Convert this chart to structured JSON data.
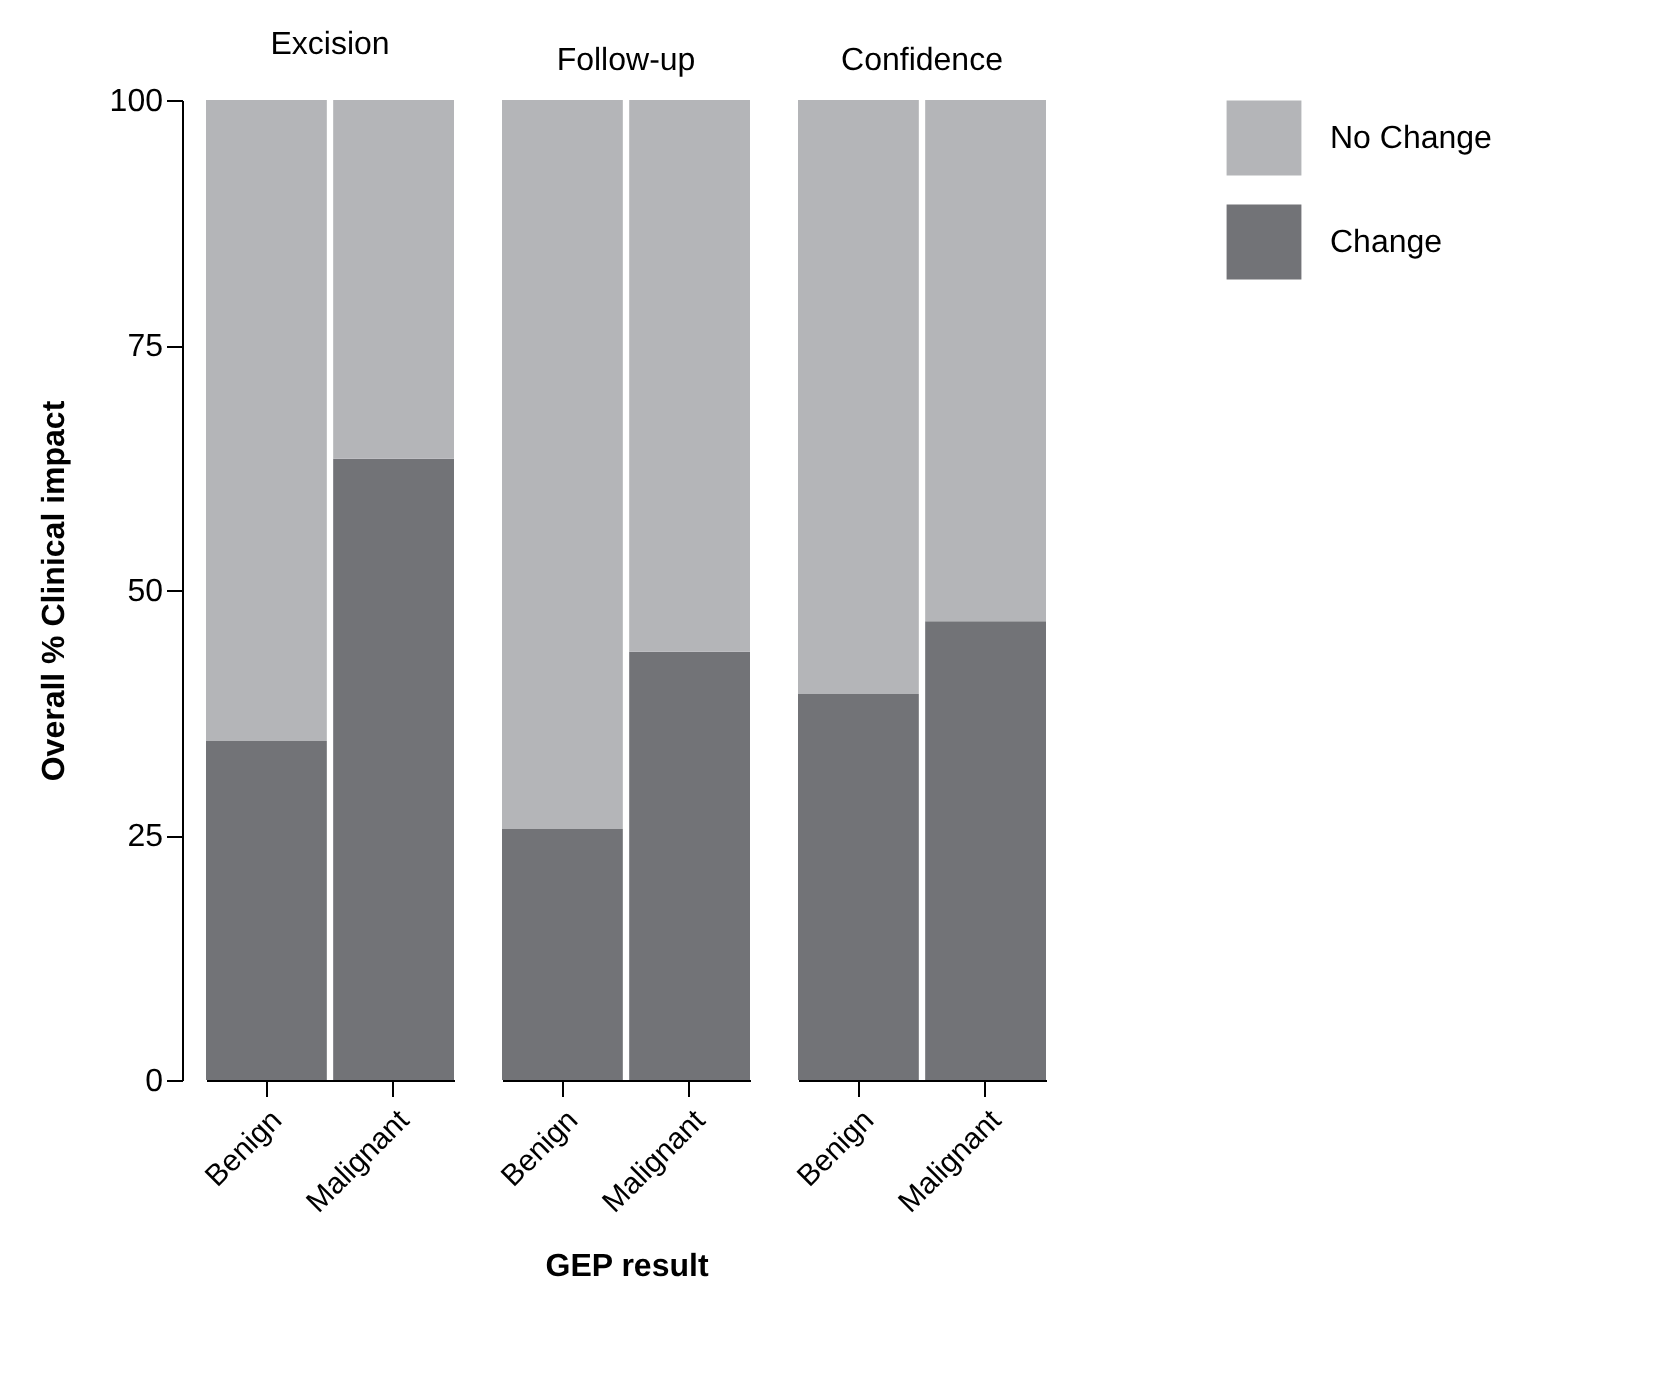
{
  "chart_data": [
    {
      "type": "bar",
      "title": "Excision",
      "ylabel": "Overall % Clinical impact",
      "categories": [
        "Benign",
        "Malignant"
      ],
      "stacked": true,
      "ylim": [
        0,
        100
      ],
      "yticks": [
        0,
        25,
        50,
        75,
        100
      ],
      "grid": false,
      "series": [
        {
          "color": "#727377",
          "values": [
            34.6,
            63.4
          ]
        },
        {
          "color": "#b4b5b8",
          "values": [
            65.4,
            36.6
          ]
        }
      ]
    },
    {
      "type": "bar",
      "title": "Follow-up",
      "xlabel": "GEP result",
      "categories": [
        "Benign",
        "Malignant"
      ],
      "stacked": true,
      "ylim": [
        0,
        100
      ],
      "tick_labels": "x",
      "grid": false,
      "series": [
        {
          "color": "#727377",
          "values": [
            25.6,
            43.7
          ]
        },
        {
          "color": "#b4b5b8",
          "values": [
            74.4,
            56.3
          ]
        }
      ]
    },
    {
      "type": "bar",
      "title": "Confidence",
      "categories": [
        "Benign",
        "Malignant"
      ],
      "stacked": true,
      "ylim": [
        0,
        100
      ],
      "tick_labels": "x",
      "grid": false,
      "legend": "right",
      "series": [
        {
          "name": "Change",
          "color": "#727377",
          "values": [
            39.4,
            46.8
          ]
        },
        {
          "name": "No Change",
          "color": "#b4b5b8",
          "values": [
            60.6,
            53.2
          ]
        }
      ]
    }
  ]
}
